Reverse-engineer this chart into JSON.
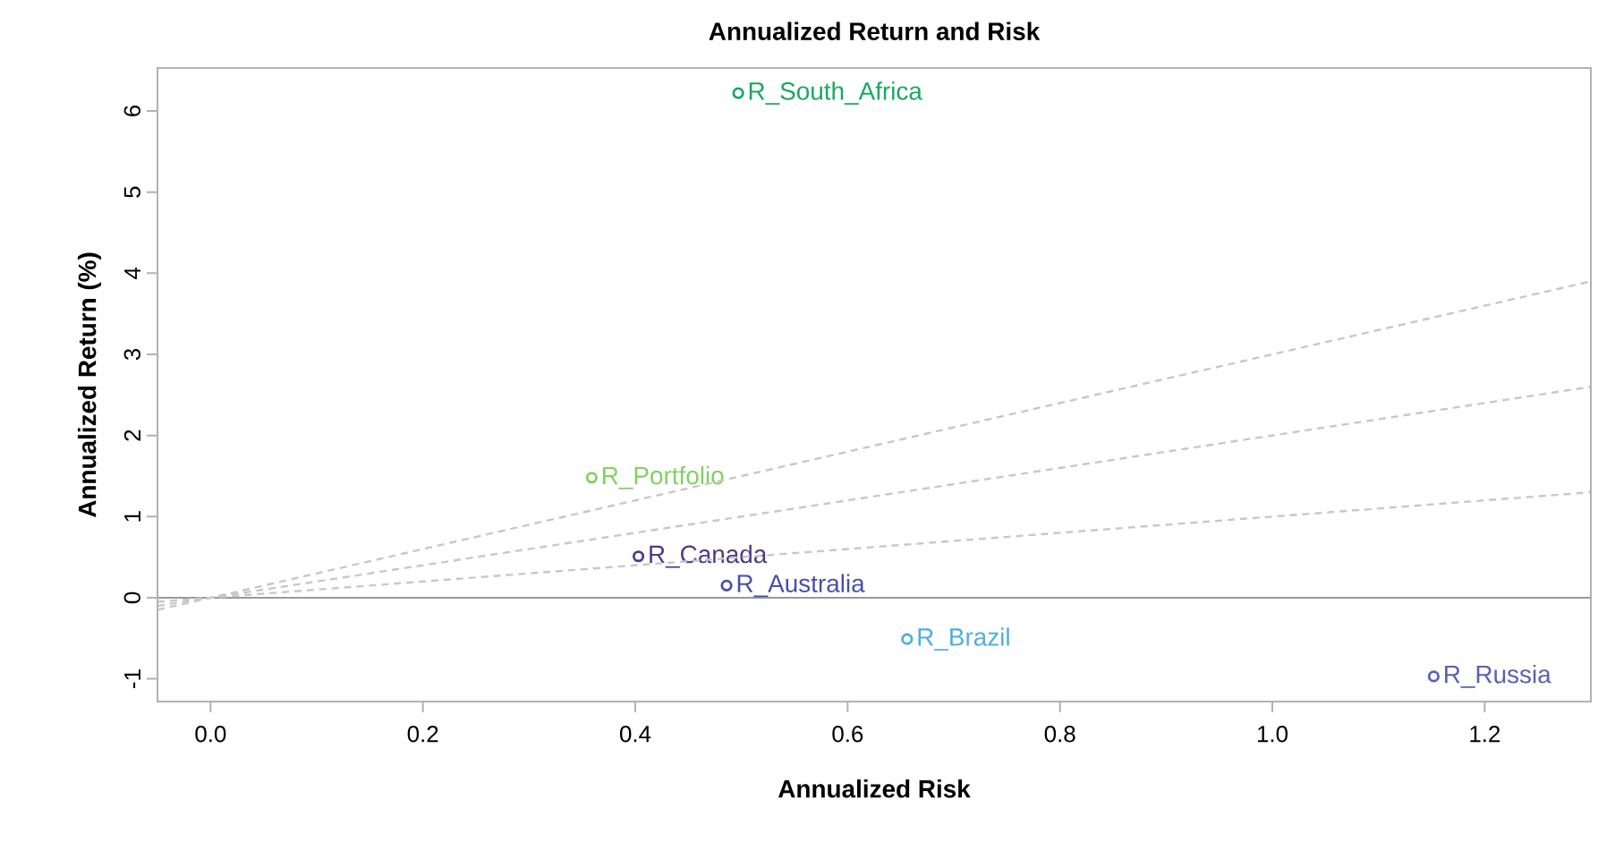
{
  "chart_data": {
    "type": "scatter",
    "title": "Annualized Return and Risk",
    "xlabel": "Annualized Risk",
    "ylabel": "Annualized Return (%)",
    "xlim": [
      -0.05,
      1.3
    ],
    "ylim": [
      -1.28,
      6.53
    ],
    "xticks": [
      {
        "value": 0,
        "label": "0.0"
      },
      0.2,
      0.4,
      0.6,
      0.8,
      {
        "value": 1,
        "label": "1.0"
      },
      1.2
    ],
    "yticks": [
      -1,
      0,
      1,
      2,
      3,
      4,
      5,
      6
    ],
    "marker": "circle",
    "legend": false,
    "grid": false,
    "ref_lines": [
      {
        "axis": "y",
        "value": 0,
        "color": "#9a9a9a",
        "line_style": "solid"
      }
    ],
    "series": [
      {
        "name": "R_South_Africa",
        "color": "#1aa860",
        "x": [
          0.497
        ],
        "values": [
          6.22
        ]
      },
      {
        "name": "R_Portfolio",
        "color": "#84d060",
        "x": [
          0.359
        ],
        "values": [
          1.48
        ]
      },
      {
        "name": "R_Canada",
        "color": "#4a3f8a",
        "x": [
          0.403
        ],
        "values": [
          0.51
        ]
      },
      {
        "name": "R_Australia",
        "color": "#4b4fa8",
        "x": [
          0.486
        ],
        "values": [
          0.15
        ]
      },
      {
        "name": "R_Brazil",
        "color": "#4fb0d8",
        "x": [
          0.656
        ],
        "values": [
          -0.51
        ]
      },
      {
        "name": "R_Russia",
        "color": "#5a5fb8",
        "x": [
          1.152
        ],
        "values": [
          -0.97
        ]
      },
      {
        "type": "line",
        "color": "#c8c8c8",
        "line_style": "dashed",
        "marker": "none",
        "x": [
          -0.05,
          1.3
        ],
        "values": [
          -0.15,
          3.9
        ]
      },
      {
        "type": "line",
        "color": "#c8c8c8",
        "line_style": "dashed",
        "marker": "none",
        "x": [
          -0.05,
          1.3
        ],
        "values": [
          -0.1,
          2.6
        ]
      },
      {
        "type": "line",
        "color": "#c8c8c8",
        "line_style": "dashed",
        "marker": "none",
        "x": [
          -0.05,
          1.3
        ],
        "values": [
          -0.05,
          1.3
        ]
      }
    ]
  }
}
